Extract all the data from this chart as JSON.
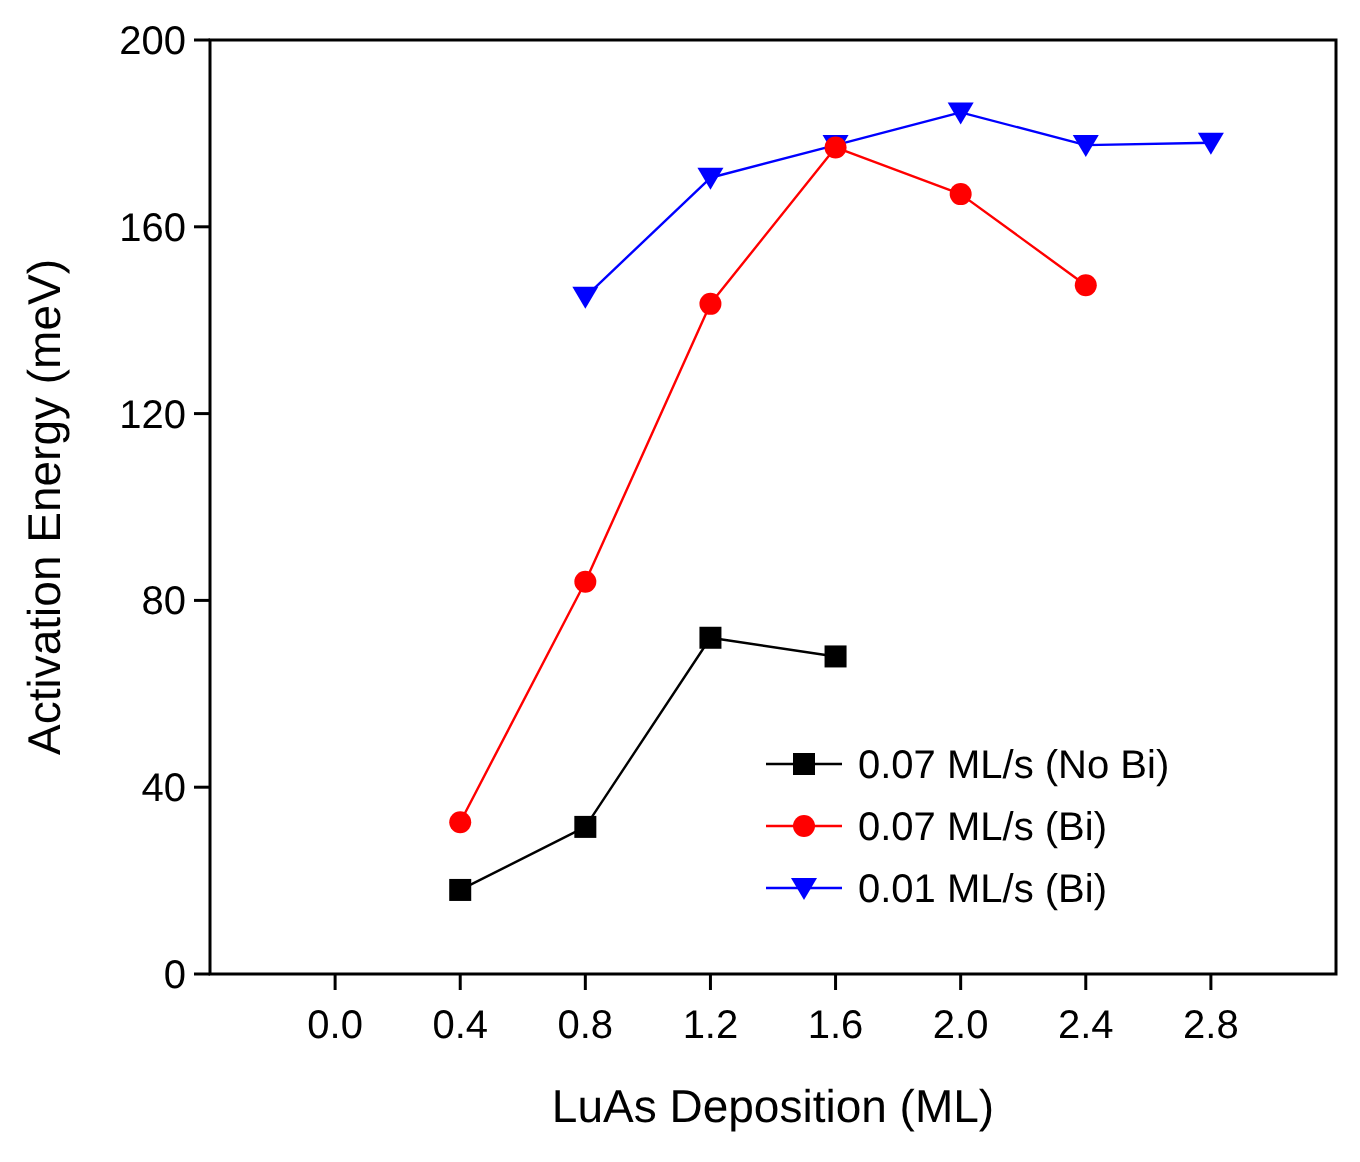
{
  "chart_data": {
    "type": "line",
    "xlabel": "LuAs Deposition (ML)",
    "ylabel": "Activation Energy (meV)",
    "xlim": [
      -0.4,
      3.2
    ],
    "xticks": [
      {
        "value": 0,
        "label": "0.0"
      },
      0.4,
      0.8,
      1.2,
      1.6,
      {
        "value": 2,
        "label": "2.0"
      },
      2.4,
      2.8
    ],
    "ylim": [
      0,
      200
    ],
    "yticks": [
      0,
      40,
      80,
      120,
      160,
      200
    ],
    "grid": false,
    "legend": "bottom right",
    "series": [
      {
        "name": "0.07 ML/s (No Bi)",
        "color": "#000000",
        "marker": "square",
        "x": [
          0.4,
          0.8,
          1.2,
          1.6
        ],
        "values": [
          18,
          31.5,
          72,
          68
        ]
      },
      {
        "name": "0.07 ML/s (Bi)",
        "color": "#ff0000",
        "marker": "circle",
        "x": [
          0.4,
          0.8,
          1.2,
          1.6,
          2.0,
          2.4
        ],
        "values": [
          32.5,
          84,
          143.5,
          177,
          167,
          147.5
        ]
      },
      {
        "name": "0.01 ML/s (Bi)",
        "color": "#0000ff",
        "marker": "triangle",
        "x": [
          0.8,
          1.2,
          1.6,
          2.0,
          2.4,
          2.8
        ],
        "values": [
          145,
          170.5,
          177.5,
          184.5,
          177.5,
          178
        ]
      }
    ]
  }
}
